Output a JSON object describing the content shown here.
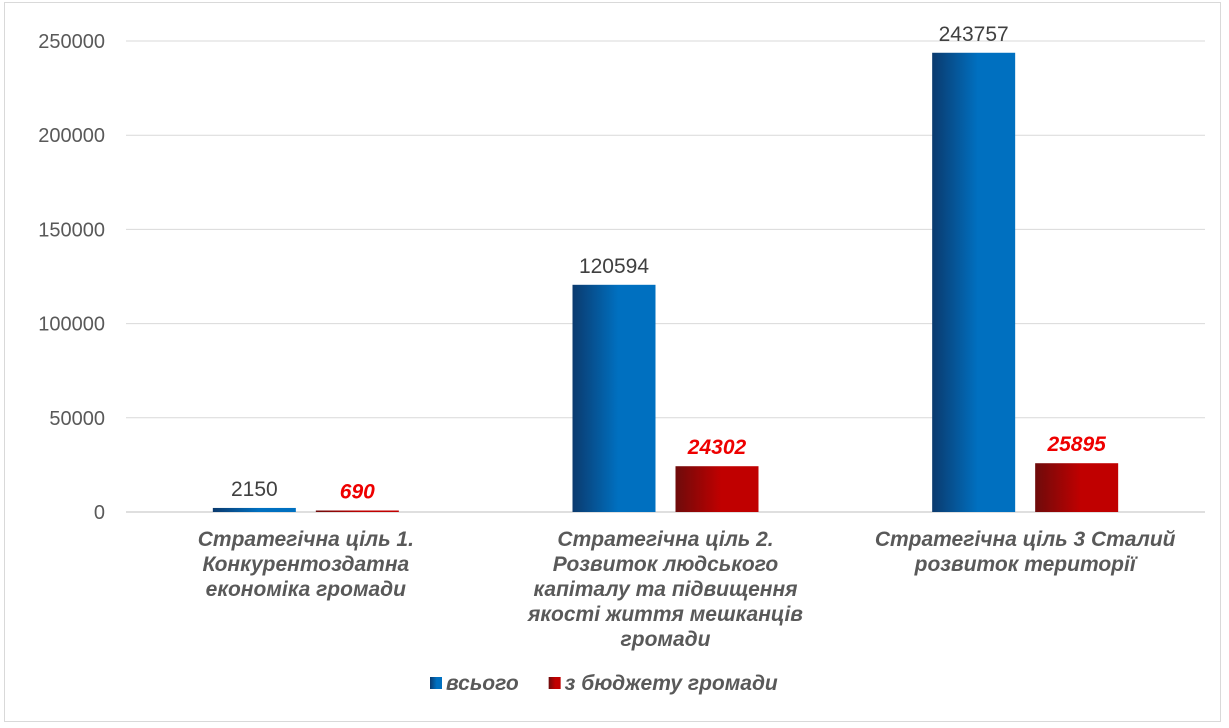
{
  "chart_data": {
    "type": "bar",
    "title": "",
    "xlabel": "",
    "ylabel": "",
    "ylim": [
      0,
      250000
    ],
    "yticks": [
      0,
      50000,
      100000,
      150000,
      200000,
      250000
    ],
    "grid": true,
    "legend_position": "bottom",
    "categories": [
      [
        "Стратегічна ціль 1.",
        "Конкурентоздатна",
        "економіка громади"
      ],
      [
        "Стратегічна ціль 2.",
        "Розвиток людського",
        "капіталу та підвищення",
        "якості життя мешканців",
        "громади"
      ],
      [
        "Стратегічна ціль 3 Сталий",
        "розвиток території"
      ]
    ],
    "series": [
      {
        "name": "всього",
        "values": [
          2150,
          120594,
          243757
        ],
        "color": "#0070c0",
        "color_dark": "#0b3a6e"
      },
      {
        "name": "з бюджету громади",
        "values": [
          690,
          24302,
          25895
        ],
        "color": "#c00000",
        "color_dark": "#6e0b0b"
      }
    ]
  }
}
